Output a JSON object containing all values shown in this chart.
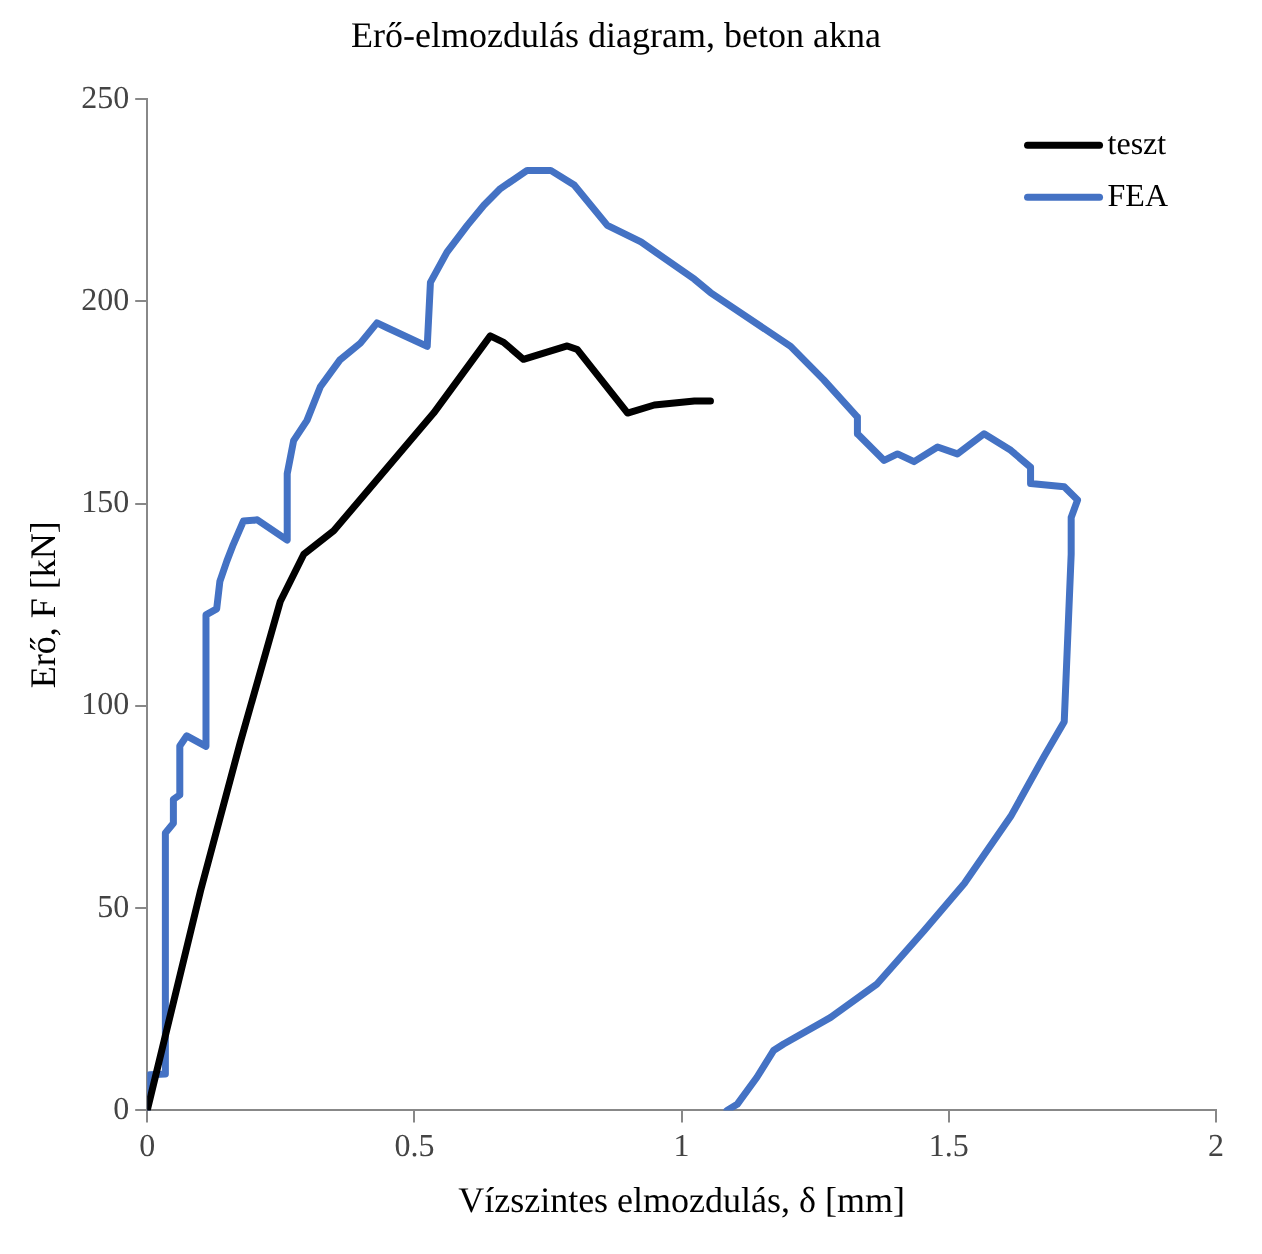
{
  "chart_data": {
    "type": "line",
    "title": "Erő-elmozdulás diagram, beton akna",
    "xlabel": "Vízszintes elmozdulás, δ [mm]",
    "ylabel": "Erő, F [kN]",
    "xlim": [
      0,
      2
    ],
    "xticks": [
      0,
      0.5,
      1,
      1.5,
      2
    ],
    "ylim": [
      0,
      250
    ],
    "yticks": [
      0,
      50,
      100,
      150,
      200,
      250
    ],
    "grid": false,
    "legend": "top right",
    "marker": "none",
    "line_style": "solid",
    "series": [
      {
        "name": "teszt",
        "color": "#000000",
        "x": [
          0,
          0.1,
          0.174,
          0.249,
          0.293,
          0.349,
          0.536,
          0.642,
          0.667,
          0.704,
          0.786,
          0.805,
          0.899,
          0.949,
          1.024,
          1.054
        ],
        "values": [
          0,
          54.4,
          90.9,
          125.8,
          137.5,
          143.3,
          172.4,
          191.5,
          189.9,
          185.7,
          189,
          188.1,
          172.4,
          174.4,
          175.4,
          175.4
        ]
      },
      {
        "name": "FEA",
        "color": "#4472c4",
        "x": [
          0,
          0.005,
          0.034,
          0.034,
          0.049,
          0.049,
          0.061,
          0.061,
          0.074,
          0.11,
          0.11,
          0.13,
          0.136,
          0.149,
          0.161,
          0.18,
          0.206,
          0.262,
          0.262,
          0.274,
          0.299,
          0.324,
          0.361,
          0.399,
          0.43,
          0.449,
          0.524,
          0.53,
          0.561,
          0.599,
          0.63,
          0.661,
          0.711,
          0.755,
          0.799,
          0.861,
          0.924,
          1.024,
          1.054,
          1.204,
          1.266,
          1.329,
          1.329,
          1.379,
          1.404,
          1.435,
          1.479,
          1.516,
          1.566,
          1.616,
          1.653,
          1.653,
          1.716,
          1.741,
          1.729,
          1.729,
          1.716,
          1.679,
          1.616,
          1.529,
          1.454,
          1.366,
          1.279,
          1.191,
          1.172,
          1.141,
          1.104,
          1.085
        ],
        "values": [
          0,
          8.8,
          9,
          68.6,
          71,
          76.9,
          78,
          90.1,
          92.6,
          90,
          122.5,
          124,
          130.8,
          135.8,
          139.9,
          145.7,
          146,
          141,
          157.4,
          165.6,
          170.6,
          178.9,
          185.6,
          189.7,
          194.7,
          193.5,
          188.9,
          204.7,
          212.2,
          218.8,
          223.8,
          227.9,
          232.4,
          232.4,
          228.8,
          218.8,
          214.7,
          205.5,
          202.2,
          188.9,
          180.6,
          171.4,
          167.3,
          160.7,
          162.3,
          160.4,
          164,
          162.3,
          167.3,
          163.2,
          159,
          155,
          154.2,
          150.9,
          146.6,
          137.5,
          96.1,
          87.7,
          72.7,
          56.1,
          44.5,
          31.3,
          23,
          16.4,
          14.8,
          8.2,
          1.5,
          0
        ]
      }
    ]
  }
}
